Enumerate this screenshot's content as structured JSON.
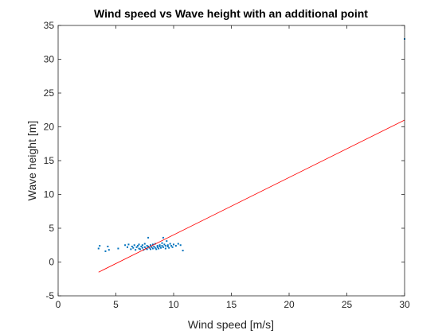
{
  "chart_data": {
    "type": "scatter",
    "title": "Wind speed vs Wave height with an additional point",
    "xlabel": "Wind speed [m/s]",
    "ylabel": "Wave height [m]",
    "xlim": [
      0,
      30
    ],
    "ylim": [
      -5,
      35
    ],
    "x_ticks": [
      0,
      5,
      10,
      15,
      20,
      25,
      30
    ],
    "y_ticks": [
      -5,
      0,
      5,
      10,
      15,
      20,
      25,
      30,
      35
    ],
    "x_tick_labels": [
      "0",
      "5",
      "10",
      "15",
      "20",
      "25",
      "30"
    ],
    "y_tick_labels": [
      "-5",
      "0",
      "5",
      "10",
      "15",
      "20",
      "25",
      "30",
      "35"
    ],
    "grid": false,
    "legend": "none",
    "series": [
      {
        "kind": "scatter",
        "color": "#0072BD",
        "points": [
          [
            3.5,
            2.0
          ],
          [
            3.6,
            2.4
          ],
          [
            4.1,
            1.6
          ],
          [
            4.3,
            2.3
          ],
          [
            4.4,
            1.8
          ],
          [
            5.2,
            2.0
          ],
          [
            5.8,
            2.5
          ],
          [
            6.0,
            2.2
          ],
          [
            6.1,
            2.6
          ],
          [
            6.3,
            1.9
          ],
          [
            6.4,
            2.3
          ],
          [
            6.5,
            2.1
          ],
          [
            6.6,
            2.5
          ],
          [
            6.7,
            1.8
          ],
          [
            6.8,
            2.2
          ],
          [
            6.9,
            2.4
          ],
          [
            7.0,
            2.0
          ],
          [
            7.0,
            2.6
          ],
          [
            7.1,
            1.9
          ],
          [
            7.2,
            2.3
          ],
          [
            7.3,
            2.1
          ],
          [
            7.3,
            2.5
          ],
          [
            7.4,
            1.8
          ],
          [
            7.5,
            2.2
          ],
          [
            7.5,
            2.7
          ],
          [
            7.6,
            2.0
          ],
          [
            7.7,
            2.4
          ],
          [
            7.7,
            1.9
          ],
          [
            7.8,
            2.3
          ],
          [
            7.8,
            3.6
          ],
          [
            7.9,
            2.1
          ],
          [
            8.0,
            2.5
          ],
          [
            8.0,
            1.9
          ],
          [
            8.1,
            2.2
          ],
          [
            8.2,
            2.6
          ],
          [
            8.2,
            2.0
          ],
          [
            8.3,
            2.3
          ],
          [
            8.4,
            2.1
          ],
          [
            8.4,
            2.7
          ],
          [
            8.5,
            1.9
          ],
          [
            8.6,
            2.4
          ],
          [
            8.6,
            2.2
          ],
          [
            8.7,
            2.0
          ],
          [
            8.8,
            2.5
          ],
          [
            8.8,
            2.3
          ],
          [
            8.9,
            2.1
          ],
          [
            9.0,
            2.8
          ],
          [
            9.0,
            2.4
          ],
          [
            9.1,
            3.6
          ],
          [
            9.1,
            2.2
          ],
          [
            9.2,
            2.6
          ],
          [
            9.3,
            2.0
          ],
          [
            9.3,
            2.4
          ],
          [
            9.4,
            3.1
          ],
          [
            9.5,
            2.3
          ],
          [
            9.5,
            2.5
          ],
          [
            9.6,
            2.1
          ],
          [
            9.7,
            2.7
          ],
          [
            9.8,
            2.4
          ],
          [
            9.9,
            2.2
          ],
          [
            10.0,
            2.6
          ],
          [
            10.2,
            2.4
          ],
          [
            10.4,
            2.7
          ],
          [
            10.6,
            2.5
          ],
          [
            10.8,
            1.7
          ],
          [
            30.0,
            33.0
          ]
        ]
      },
      {
        "kind": "line",
        "color": "#FF0000",
        "points": [
          [
            3.5,
            -1.5
          ],
          [
            30.0,
            21.0
          ]
        ]
      }
    ]
  }
}
